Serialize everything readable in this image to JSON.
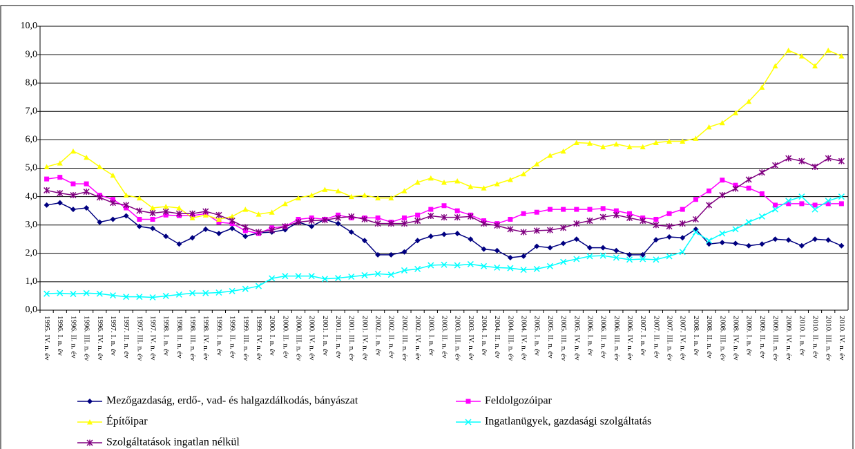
{
  "chart_data": {
    "type": "line",
    "categories": [
      "1995. IV. n. év",
      "1996. I. n. év",
      "1996. II. n. év",
      "1996. III. n. év",
      "1996. IV. n. év",
      "1997. I. n. év",
      "1997. II. n. év",
      "1997. III. n. év",
      "1997. IV. n. év",
      "1998. I. n. év",
      "1998. II. n. év",
      "1998. III. n. év",
      "1998. IV. n. év",
      "1999. I. n. év",
      "1999. II. n. év",
      "1999. III. n. év",
      "1999. IV. n. év",
      "2000. I. n. év",
      "2000. II. n. év",
      "2000. III. n. év",
      "2000. IV. n. év",
      "2001. I. n. év",
      "2001. II. n. év",
      "2001. III. n. év",
      "2001. IV. n. év",
      "2002. I. n. év",
      "2002. II. n. év",
      "2002. III. n. év",
      "2002. IV. n. év",
      "2003. I. n. év",
      "2003. II. n. év",
      "2003. III. n. év",
      "2003. IV. n. év",
      "2004. I. n. év",
      "2004. II. n. év",
      "2004. III. n. év",
      "2004. IV. n. év",
      "2005. I. n. év",
      "2005. II. n. év",
      "2005. III. n. év",
      "2005. IV. n. év",
      "2006. I. n. év",
      "2006. II. n. év",
      "2006. III. n. év",
      "2006. IV. n. év",
      "2007. I. n. év",
      "2007. II. n. év",
      "2007. III. n. év",
      "2007. IV. n. év",
      "2008. I. n. év",
      "2008. II. n. év",
      "2008. III. n. év",
      "2008. IV. n. év",
      "2009. I. n. év",
      "2009. II. n. év",
      "2009. III. n. év",
      "2009. IV. n. év",
      "2010. I. n. év",
      "2010. II. n. év",
      "2010. III. n. év",
      "2010. IV. n. év"
    ],
    "series": [
      {
        "name": "Mezőgazdaság, erdő-, vad- és halgazdálkodás, bányászat",
        "color": "#000080",
        "marker": "diamond",
        "values": [
          3.7,
          3.78,
          3.55,
          3.6,
          3.1,
          3.2,
          3.32,
          2.95,
          2.88,
          2.6,
          2.33,
          2.55,
          2.85,
          2.7,
          2.88,
          2.6,
          2.72,
          2.75,
          2.83,
          3.1,
          2.95,
          3.2,
          3.05,
          2.75,
          2.45,
          1.95,
          1.95,
          2.05,
          2.45,
          2.6,
          2.67,
          2.7,
          2.5,
          2.15,
          2.1,
          1.85,
          1.9,
          2.25,
          2.2,
          2.35,
          2.5,
          2.2,
          2.2,
          2.1,
          1.95,
          1.95,
          2.48,
          2.58,
          2.55,
          2.85,
          2.33,
          2.38,
          2.35,
          2.27,
          2.33,
          2.5,
          2.47,
          2.27,
          2.5,
          2.47,
          2.27
        ]
      },
      {
        "name": "Feldolgozóipar",
        "color": "#ff00ff",
        "marker": "square",
        "values": [
          4.62,
          4.68,
          4.45,
          4.45,
          4.05,
          3.9,
          3.6,
          3.2,
          3.2,
          3.35,
          3.33,
          3.33,
          3.4,
          3.1,
          3.05,
          2.8,
          2.7,
          2.9,
          2.95,
          3.2,
          3.25,
          3.2,
          3.35,
          3.25,
          3.25,
          3.25,
          3.1,
          3.25,
          3.35,
          3.55,
          3.68,
          3.5,
          3.35,
          3.15,
          3.05,
          3.2,
          3.4,
          3.45,
          3.55,
          3.55,
          3.55,
          3.55,
          3.58,
          3.5,
          3.4,
          3.25,
          3.2,
          3.4,
          3.55,
          3.9,
          4.2,
          4.58,
          4.4,
          4.3,
          4.1,
          3.7,
          3.75,
          3.75,
          3.7,
          3.75,
          3.75
        ]
      },
      {
        "name": "Építőipar",
        "color": "#ffff00",
        "marker": "triangle",
        "values": [
          5.05,
          5.18,
          5.6,
          5.38,
          5.05,
          4.75,
          4.05,
          3.95,
          3.6,
          3.65,
          3.6,
          3.25,
          3.35,
          3.2,
          3.3,
          3.55,
          3.38,
          3.45,
          3.75,
          3.95,
          4.05,
          4.25,
          4.2,
          4.0,
          4.05,
          3.95,
          3.95,
          4.2,
          4.5,
          4.65,
          4.5,
          4.55,
          4.35,
          4.3,
          4.45,
          4.6,
          4.8,
          5.15,
          5.45,
          5.6,
          5.9,
          5.88,
          5.75,
          5.85,
          5.75,
          5.75,
          5.9,
          5.95,
          5.95,
          6.05,
          6.45,
          6.6,
          6.95,
          7.35,
          7.85,
          8.6,
          9.15,
          8.95,
          8.6,
          9.15,
          8.95
        ]
      },
      {
        "name": "Ingatlanügyek, gazdasági szolgáltatás",
        "color": "#00ffff",
        "marker": "x",
        "values": [
          0.58,
          0.6,
          0.57,
          0.6,
          0.58,
          0.52,
          0.47,
          0.47,
          0.45,
          0.5,
          0.55,
          0.6,
          0.6,
          0.62,
          0.67,
          0.75,
          0.85,
          1.12,
          1.2,
          1.2,
          1.2,
          1.1,
          1.13,
          1.18,
          1.23,
          1.28,
          1.25,
          1.4,
          1.45,
          1.58,
          1.6,
          1.58,
          1.62,
          1.55,
          1.5,
          1.48,
          1.42,
          1.45,
          1.55,
          1.7,
          1.8,
          1.9,
          1.92,
          1.85,
          1.78,
          1.8,
          1.78,
          1.9,
          2.05,
          2.75,
          2.45,
          2.7,
          2.85,
          3.1,
          3.3,
          3.55,
          3.85,
          4.0,
          3.55,
          3.85,
          4.0
        ]
      },
      {
        "name": "Szolgáltatások ingatlan nélkül",
        "color": "#800080",
        "marker": "asterisk",
        "values": [
          4.22,
          4.12,
          4.05,
          4.17,
          3.97,
          3.78,
          3.7,
          3.5,
          3.42,
          3.47,
          3.4,
          3.4,
          3.48,
          3.35,
          3.15,
          2.92,
          2.75,
          2.82,
          2.95,
          3.1,
          3.15,
          3.17,
          3.25,
          3.3,
          3.2,
          3.05,
          3.05,
          3.05,
          3.15,
          3.32,
          3.27,
          3.27,
          3.3,
          3.05,
          2.98,
          2.85,
          2.75,
          2.8,
          2.82,
          2.9,
          3.05,
          3.15,
          3.28,
          3.35,
          3.25,
          3.15,
          3.0,
          2.95,
          3.05,
          3.2,
          3.7,
          4.05,
          4.28,
          4.6,
          4.85,
          5.1,
          5.35,
          5.25,
          5.05,
          5.35,
          5.25
        ]
      }
    ],
    "ylim": [
      0,
      10
    ],
    "yticks": [
      {
        "value": 0,
        "label": "0,0"
      },
      {
        "value": 1,
        "label": "1,0"
      },
      {
        "value": 2,
        "label": "2,0"
      },
      {
        "value": 3,
        "label": "3,0"
      },
      {
        "value": 4,
        "label": "4,0"
      },
      {
        "value": 5,
        "label": "5,0"
      },
      {
        "value": 6,
        "label": "6,0"
      },
      {
        "value": 7,
        "label": "7,0"
      },
      {
        "value": 8,
        "label": "8,0"
      },
      {
        "value": 9,
        "label": "9,0"
      },
      {
        "value": 10,
        "label": "10,0"
      }
    ],
    "grid": true
  }
}
